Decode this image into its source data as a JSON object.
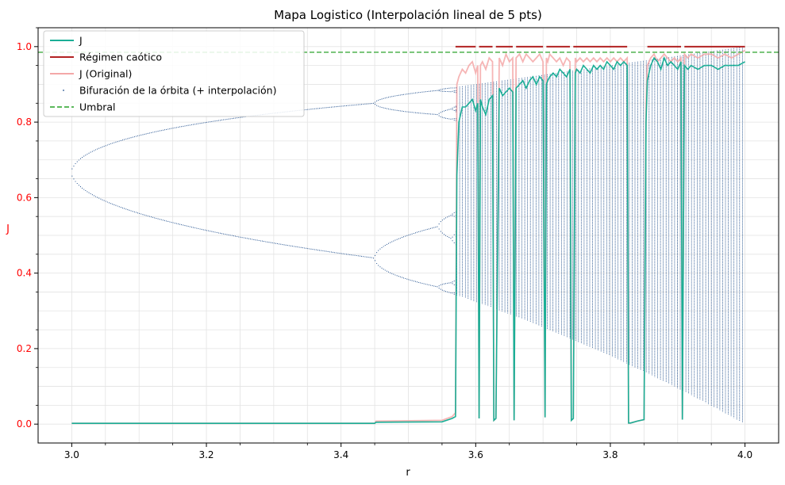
{
  "chart_data": {
    "type": "line",
    "title": "Mapa Logistico (Interpolación lineal de 5 pts)",
    "xlabel": "r",
    "ylabel": "J",
    "xlim": [
      2.95,
      4.05
    ],
    "ylim": [
      -0.05,
      1.05
    ],
    "xticks": [
      3.0,
      3.2,
      3.4,
      3.6,
      3.8,
      4.0
    ],
    "xtick_labels": [
      "3.0",
      "3.2",
      "3.4",
      "3.6",
      "3.8",
      "4.0"
    ],
    "yticks": [
      0.0,
      0.2,
      0.4,
      0.6,
      0.8,
      1.0
    ],
    "ytick_labels": [
      "0.0",
      "0.2",
      "0.4",
      "0.6",
      "0.8",
      "1.0"
    ],
    "grid": true,
    "legend_position": "top-left",
    "legend": [
      {
        "label": "J",
        "color": "#1aae96",
        "style": "solid"
      },
      {
        "label": "Régimen caótico",
        "color": "#b22222",
        "style": "solid"
      },
      {
        "label": "J (Original)",
        "color": "#f4a8a8",
        "style": "solid"
      },
      {
        "label": "Bifuración de la órbita (+ interpolación)",
        "color": "#1f4e8c",
        "style": "dotted"
      },
      {
        "label": "Umbral",
        "color": "#5cb85c",
        "style": "dashed"
      }
    ],
    "threshold": {
      "name": "Umbral",
      "y": 0.985,
      "color": "#5cb85c"
    },
    "chaotic_segments": {
      "name": "Régimen caótico",
      "y": 1.0,
      "color": "#b22222",
      "ranges": [
        [
          3.57,
          3.6
        ],
        [
          3.605,
          3.625
        ],
        [
          3.63,
          3.655
        ],
        [
          3.66,
          3.7
        ],
        [
          3.705,
          3.74
        ],
        [
          3.745,
          3.825
        ],
        [
          3.855,
          3.905
        ],
        [
          3.91,
          4.0
        ]
      ]
    },
    "series": [
      {
        "name": "J",
        "color": "#1aae96",
        "x": [
          3.0,
          3.45,
          3.452,
          3.55,
          3.565,
          3.57,
          3.572,
          3.575,
          3.58,
          3.585,
          3.59,
          3.595,
          3.6,
          3.603,
          3.605,
          3.607,
          3.61,
          3.615,
          3.62,
          3.625,
          3.627,
          3.63,
          3.635,
          3.64,
          3.645,
          3.65,
          3.655,
          3.657,
          3.66,
          3.665,
          3.67,
          3.675,
          3.68,
          3.685,
          3.69,
          3.695,
          3.7,
          3.703,
          3.705,
          3.707,
          3.71,
          3.715,
          3.72,
          3.725,
          3.73,
          3.735,
          3.74,
          3.742,
          3.745,
          3.748,
          3.75,
          3.755,
          3.76,
          3.765,
          3.77,
          3.775,
          3.78,
          3.785,
          3.79,
          3.795,
          3.8,
          3.805,
          3.81,
          3.815,
          3.82,
          3.825,
          3.827,
          3.83,
          3.84,
          3.85,
          3.853,
          3.855,
          3.86,
          3.865,
          3.87,
          3.875,
          3.88,
          3.885,
          3.89,
          3.895,
          3.9,
          3.905,
          3.907,
          3.91,
          3.915,
          3.92,
          3.93,
          3.94,
          3.95,
          3.96,
          3.97,
          3.98,
          3.99,
          4.0
        ],
        "y": [
          0.002,
          0.002,
          0.005,
          0.006,
          0.015,
          0.02,
          0.66,
          0.8,
          0.84,
          0.84,
          0.85,
          0.86,
          0.83,
          0.85,
          0.015,
          0.86,
          0.84,
          0.82,
          0.86,
          0.87,
          0.01,
          0.015,
          0.89,
          0.87,
          0.88,
          0.89,
          0.88,
          0.01,
          0.89,
          0.9,
          0.91,
          0.89,
          0.91,
          0.92,
          0.9,
          0.92,
          0.91,
          0.018,
          0.9,
          0.91,
          0.92,
          0.93,
          0.92,
          0.94,
          0.93,
          0.92,
          0.94,
          0.01,
          0.015,
          0.93,
          0.94,
          0.93,
          0.95,
          0.94,
          0.93,
          0.95,
          0.94,
          0.95,
          0.94,
          0.96,
          0.95,
          0.94,
          0.96,
          0.95,
          0.96,
          0.95,
          0.003,
          0.003,
          0.008,
          0.012,
          0.8,
          0.91,
          0.95,
          0.97,
          0.96,
          0.94,
          0.97,
          0.95,
          0.96,
          0.95,
          0.94,
          0.96,
          0.012,
          0.95,
          0.94,
          0.95,
          0.94,
          0.95,
          0.95,
          0.94,
          0.95,
          0.95,
          0.95,
          0.96
        ]
      },
      {
        "name": "J (Original)",
        "color": "#f4a8a8",
        "x": [
          3.0,
          3.45,
          3.452,
          3.55,
          3.565,
          3.57,
          3.572,
          3.575,
          3.58,
          3.585,
          3.59,
          3.595,
          3.6,
          3.603,
          3.605,
          3.607,
          3.61,
          3.615,
          3.62,
          3.625,
          3.627,
          3.63,
          3.635,
          3.64,
          3.645,
          3.65,
          3.655,
          3.657,
          3.66,
          3.665,
          3.67,
          3.675,
          3.68,
          3.685,
          3.69,
          3.695,
          3.7,
          3.703,
          3.705,
          3.707,
          3.71,
          3.715,
          3.72,
          3.725,
          3.73,
          3.735,
          3.74,
          3.742,
          3.745,
          3.748,
          3.75,
          3.755,
          3.76,
          3.765,
          3.77,
          3.775,
          3.78,
          3.785,
          3.79,
          3.795,
          3.8,
          3.805,
          3.81,
          3.815,
          3.82,
          3.825,
          3.827,
          3.83,
          3.84,
          3.85,
          3.853,
          3.855,
          3.86,
          3.865,
          3.87,
          3.875,
          3.88,
          3.885,
          3.89,
          3.895,
          3.9,
          3.905,
          3.907,
          3.91,
          3.915,
          3.92,
          3.93,
          3.94,
          3.95,
          3.96,
          3.97,
          3.98,
          3.99,
          4.0
        ],
        "y": [
          0.002,
          0.002,
          0.008,
          0.01,
          0.02,
          0.03,
          0.9,
          0.92,
          0.94,
          0.93,
          0.95,
          0.96,
          0.93,
          0.95,
          0.015,
          0.95,
          0.96,
          0.94,
          0.97,
          0.96,
          0.01,
          0.015,
          0.97,
          0.95,
          0.98,
          0.96,
          0.97,
          0.01,
          0.97,
          0.98,
          0.96,
          0.98,
          0.97,
          0.96,
          0.97,
          0.98,
          0.96,
          0.018,
          0.97,
          0.96,
          0.98,
          0.97,
          0.96,
          0.97,
          0.95,
          0.97,
          0.96,
          0.01,
          0.015,
          0.97,
          0.96,
          0.97,
          0.96,
          0.97,
          0.96,
          0.97,
          0.96,
          0.97,
          0.96,
          0.97,
          0.96,
          0.97,
          0.96,
          0.97,
          0.96,
          0.97,
          0.003,
          0.003,
          0.008,
          0.012,
          0.85,
          0.95,
          0.97,
          0.98,
          0.96,
          0.97,
          0.98,
          0.97,
          0.96,
          0.97,
          0.96,
          0.97,
          0.012,
          0.98,
          0.97,
          0.98,
          0.97,
          0.98,
          0.98,
          0.97,
          0.98,
          0.97,
          0.98,
          0.99
        ]
      }
    ]
  }
}
